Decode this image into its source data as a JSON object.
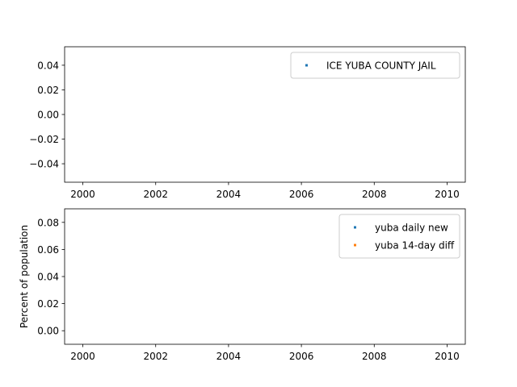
{
  "chart_data": [
    {
      "type": "scatter",
      "xlabel": "",
      "ylabel": "",
      "xlim": [
        1999.5,
        2010.5
      ],
      "ylim": [
        -0.055,
        0.055
      ],
      "xticks": [
        2000,
        2002,
        2004,
        2006,
        2008,
        2010
      ],
      "xtick_labels": [
        "2000",
        "2002",
        "2004",
        "2006",
        "2008",
        "2010"
      ],
      "yticks": [
        0.04,
        0.02,
        0.0,
        -0.02,
        -0.04
      ],
      "ytick_labels": [
        "0.04",
        "0.02",
        "0.00",
        "−0.02",
        "−0.04"
      ],
      "grid": false,
      "legend_position": "top-right",
      "series": [
        {
          "name": "ICE YUBA COUNTY JAIL",
          "color": "#1f77b4",
          "points": []
        }
      ]
    },
    {
      "type": "scatter",
      "xlabel": "",
      "ylabel": "Percent of population",
      "xlim": [
        1999.5,
        2010.5
      ],
      "ylim": [
        -0.01,
        0.09
      ],
      "xticks": [
        2000,
        2002,
        2004,
        2006,
        2008,
        2010
      ],
      "xtick_labels": [
        "2000",
        "2002",
        "2004",
        "2006",
        "2008",
        "2010"
      ],
      "yticks": [
        0.08,
        0.06,
        0.04,
        0.02,
        0.0
      ],
      "ytick_labels": [
        "0.08",
        "0.06",
        "0.04",
        "0.02",
        "0.00"
      ],
      "grid": false,
      "legend_position": "top-right",
      "series": [
        {
          "name": "yuba daily new",
          "color": "#1f77b4",
          "points": []
        },
        {
          "name": "yuba 14-day diff",
          "color": "#ff7f0e",
          "points": []
        }
      ]
    }
  ]
}
